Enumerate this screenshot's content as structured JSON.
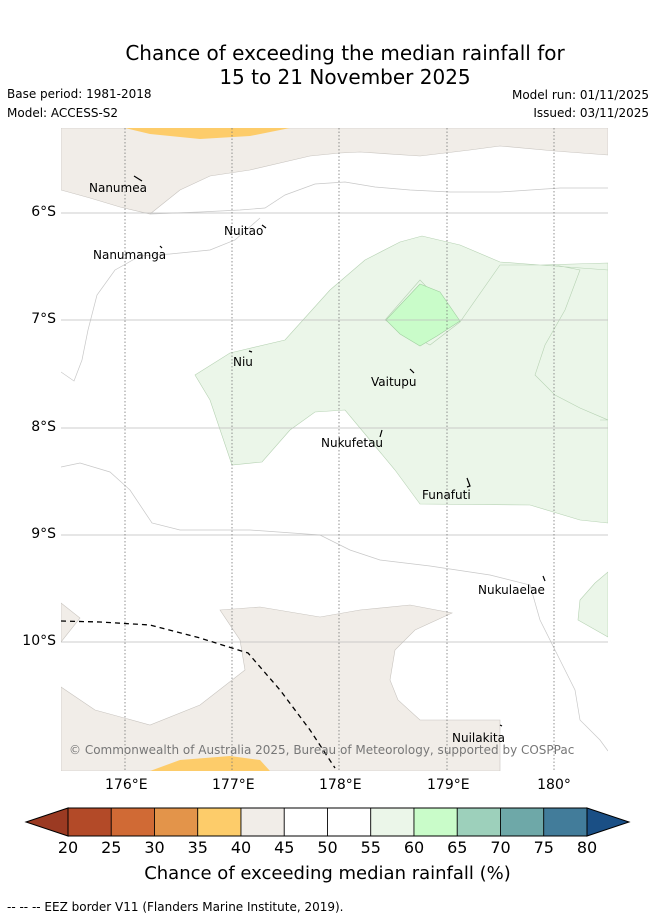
{
  "title": {
    "line1": "Chance of exceeding the median rainfall for",
    "line2": "15 to 21 November 2025"
  },
  "meta": {
    "base_period": "Base period: 1981-2018",
    "model": "Model: ACCESS-S2",
    "model_run": "Model run: 01/11/2025",
    "issued": "Issued: 03/11/2025"
  },
  "axes": {
    "x_ticks": [
      "176°E",
      "177°E",
      "178°E",
      "179°E",
      "180°"
    ],
    "y_ticks": [
      "6°S",
      "7°S",
      "8°S",
      "9°S",
      "10°S"
    ]
  },
  "places": [
    {
      "name": "Nanumea"
    },
    {
      "name": "Nuitao"
    },
    {
      "name": "Nanumanga"
    },
    {
      "name": "Niu"
    },
    {
      "name": "Vaitupu"
    },
    {
      "name": "Nukufetau"
    },
    {
      "name": "Funafuti"
    },
    {
      "name": "Nukulaelae"
    },
    {
      "name": "Nuilakita"
    }
  ],
  "copyright": "© Commonwealth of Australia 2025, Bureau of Meteorology, supported by COSPPac",
  "colorbar": {
    "ticks": [
      "20",
      "25",
      "30",
      "35",
      "40",
      "45",
      "50",
      "55",
      "60",
      "65",
      "70",
      "75",
      "80"
    ],
    "label": "Chance of exceeding median rainfall (%)",
    "colors": [
      "#b34a28",
      "#d06a35",
      "#e3944a",
      "#fdcc6a",
      "#f1ede8",
      "#ffffff",
      "#ffffff",
      "#ebf6e9",
      "#c9fcc9",
      "#9dd0bb",
      "#6ea8a8",
      "#427c9a"
    ],
    "under_color": "#9b3a22",
    "over_color": "#1a4f85"
  },
  "legend": {
    "eez": "-- -- -- EEZ border V11 (Flanders Marine Institute, 2019)."
  }
}
